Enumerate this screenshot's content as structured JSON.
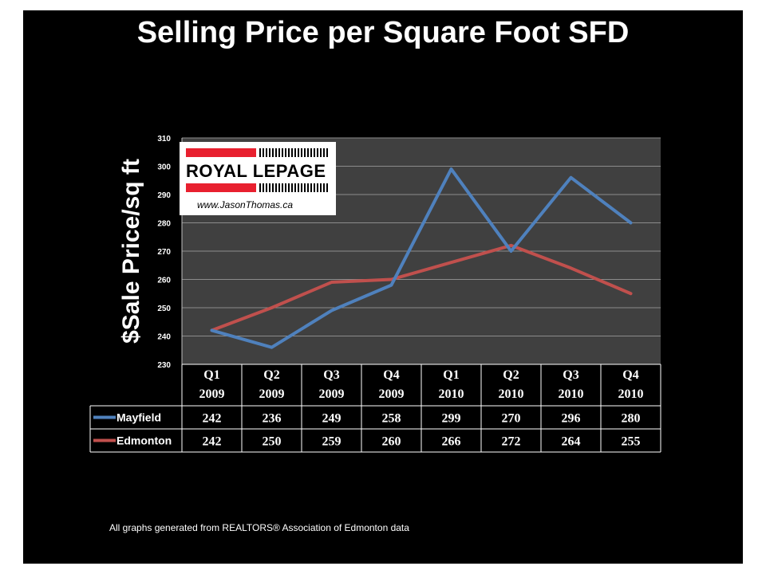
{
  "chart_data": {
    "type": "line",
    "title": "Selling Price per Square Foot SFD",
    "ylabel": "$Sale Price/sq ft",
    "xlabel": "",
    "ylim": [
      230,
      310
    ],
    "yticks": [
      230,
      240,
      250,
      260,
      270,
      280,
      290,
      300,
      310
    ],
    "grid": true,
    "categories": [
      [
        "Q1",
        "2009"
      ],
      [
        "Q2",
        "2009"
      ],
      [
        "Q3",
        "2009"
      ],
      [
        "Q4",
        "2009"
      ],
      [
        "Q1",
        "2010"
      ],
      [
        "Q2",
        "2010"
      ],
      [
        "Q3",
        "2010"
      ],
      [
        "Q4",
        "2010"
      ]
    ],
    "series": [
      {
        "name": "Mayfield",
        "color": "#4F81BD",
        "values": [
          242,
          236,
          249,
          258,
          299,
          270,
          296,
          280
        ]
      },
      {
        "name": "Edmonton",
        "color": "#C0504D",
        "values": [
          242,
          250,
          259,
          260,
          266,
          272,
          264,
          255
        ]
      }
    ],
    "legend": "data-table"
  },
  "logo": {
    "brand": "ROYAL LEPAGE",
    "url": "www.JasonThomas.ca",
    "accent": "#E8202F"
  },
  "footer": "All graphs generated from REALTORS® Association of Edmonton data",
  "colors": {
    "background": "#000000",
    "plot_area": "#404040",
    "text": "#ffffff",
    "grid": "#8c8c8c"
  }
}
